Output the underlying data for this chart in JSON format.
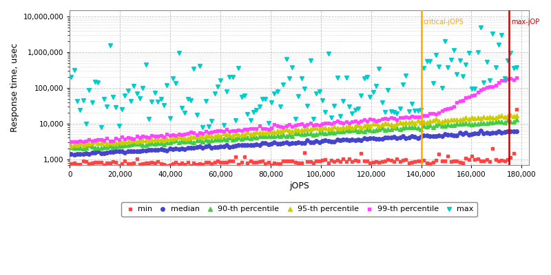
{
  "xlabel": "jOPS",
  "ylabel": "Response time, usec",
  "xlim": [
    0,
    183000
  ],
  "ylim_log": [
    700,
    15000000
  ],
  "critical_jops": 140000,
  "max_jops": 175000,
  "critical_label": "critical-jOPS",
  "max_label": "max-jOP",
  "critical_color": "#FFA500",
  "max_color": "#CC0000",
  "series": {
    "min": {
      "color": "#FF4444",
      "marker": "s",
      "markersize": 3,
      "label": "min"
    },
    "median": {
      "color": "#4444CC",
      "marker": "o",
      "markersize": 4,
      "label": "median"
    },
    "p90": {
      "color": "#44CC44",
      "marker": "^",
      "markersize": 4,
      "label": "90-th percentile"
    },
    "p95": {
      "color": "#CCCC00",
      "marker": "^",
      "markersize": 4,
      "label": "95-th percentile"
    },
    "p99": {
      "color": "#FF44FF",
      "marker": "s",
      "markersize": 3,
      "label": "99-th percentile"
    },
    "max": {
      "color": "#00CCCC",
      "marker": "v",
      "markersize": 5,
      "label": "max"
    }
  },
  "background_color": "#FFFFFF",
  "grid_color": "#BBBBBB"
}
